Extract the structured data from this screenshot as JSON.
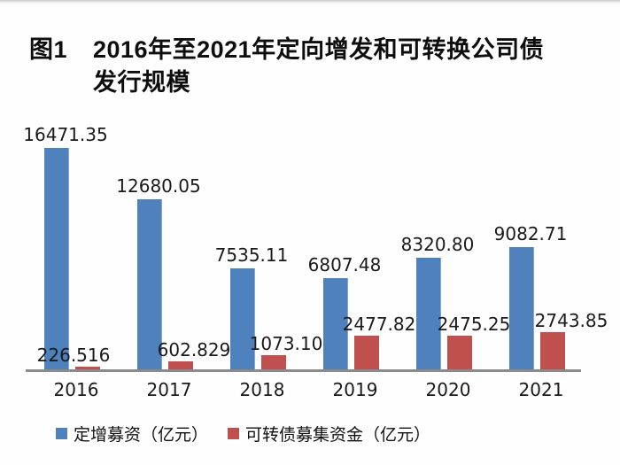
{
  "figure": {
    "label": "图1",
    "title_line1": "2016年至2021年定向增发和可转换公司债",
    "title_line2": "发行规模"
  },
  "chart_data": {
    "type": "bar",
    "categories": [
      "2016",
      "2017",
      "2018",
      "2019",
      "2020",
      "2021"
    ],
    "series": [
      {
        "name": "定增募资（亿元）",
        "color": "#4f81bd",
        "values": [
          16471.35,
          12680.05,
          7535.11,
          6807.48,
          8320.8,
          9082.71
        ],
        "labels": [
          "16471.35",
          "12680.05",
          "7535.11",
          "6807.48",
          "8320.80",
          "9082.71"
        ]
      },
      {
        "name": "可转债募集资金（亿元）",
        "color": "#c0504d",
        "values": [
          226.516,
          602.829,
          1073.1,
          2477.82,
          2475.25,
          2743.85
        ],
        "labels": [
          "226.516",
          "602.829",
          "1073.10",
          "2477.82",
          "2475.25",
          "2743.85"
        ]
      }
    ],
    "xlabel": "",
    "ylabel": "",
    "ylim": [
      0,
      16471.35
    ],
    "grid": false,
    "y_axis_visible": false,
    "legend_position": "bottom",
    "axis_line_color": "#8b8b8b",
    "data_labels": true
  }
}
